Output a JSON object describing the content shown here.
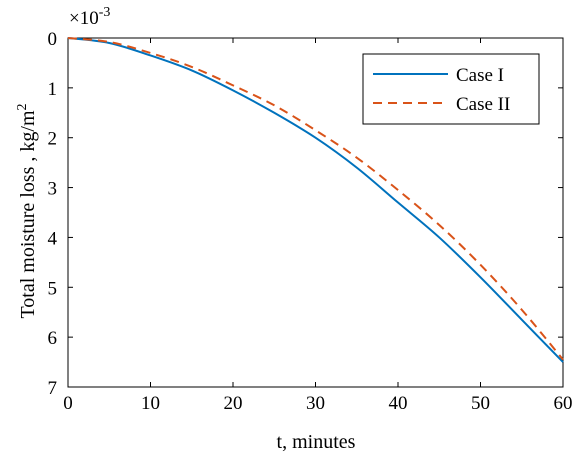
{
  "chart_data": {
    "type": "line",
    "title": "",
    "xlabel": "t, minutes",
    "ylabel": "Total moisture loss , kg/m",
    "ylabel_sup": "2",
    "exponent_base": "×10",
    "exponent_power": "-3",
    "xlim": [
      0,
      60
    ],
    "ylim": [
      0,
      7
    ],
    "y_reversed": true,
    "x_ticks": [
      0,
      10,
      20,
      30,
      40,
      50,
      60
    ],
    "y_ticks": [
      0,
      1,
      2,
      3,
      4,
      5,
      6,
      7
    ],
    "grid": false,
    "legend_position": "top-right",
    "x": [
      0,
      5,
      10,
      15,
      20,
      25,
      30,
      35,
      40,
      45,
      50,
      55,
      60
    ],
    "series": [
      {
        "name": "Case I",
        "color": "#0072BD",
        "style": "solid",
        "values": [
          0,
          0.1,
          0.35,
          0.65,
          1.05,
          1.5,
          2.0,
          2.6,
          3.3,
          4.0,
          4.8,
          5.65,
          6.5
        ]
      },
      {
        "name": "Case II",
        "color": "#D95319",
        "style": "dashed",
        "values": [
          0,
          0.08,
          0.3,
          0.58,
          0.95,
          1.35,
          1.85,
          2.4,
          3.05,
          3.75,
          4.55,
          5.45,
          6.45
        ]
      }
    ]
  }
}
